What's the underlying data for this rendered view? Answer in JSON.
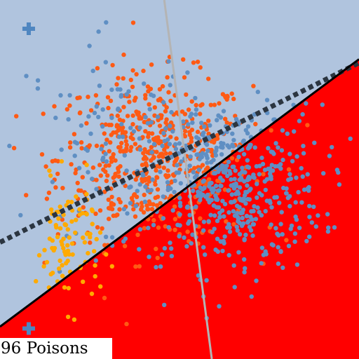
{
  "caption": "96 Poisons",
  "chart_data": {
    "type": "scatter",
    "title": "",
    "xlabel": "",
    "ylabel": "",
    "xlim": [
      -1,
      1
    ],
    "ylim": [
      -1,
      1
    ],
    "grid": false,
    "legend": "none",
    "regions": {
      "upper_color": "#b0c4de",
      "lower_color": "#ff0000",
      "boundary": {
        "color": "#000000",
        "x": [
          -1,
          1
        ],
        "y": [
          -0.82,
          0.67
        ]
      }
    },
    "lines": [
      {
        "name": "",
        "style": "dotted",
        "color": "#2b3540",
        "x": [
          -1,
          1
        ],
        "y": [
          -0.35,
          0.65
        ]
      },
      {
        "name": "",
        "style": "solid",
        "color": "#b4b4b4",
        "x": [
          -0.085,
          0.18
        ],
        "y": [
          1,
          -1
        ]
      }
    ],
    "centroids": [
      {
        "color": "#4f86c0",
        "marker": "plus",
        "x": -0.84,
        "y": 0.84
      },
      {
        "color": "#4f86c0",
        "marker": "plus",
        "x": -0.84,
        "y": -0.83
      }
    ],
    "series": [
      {
        "color": "#ff5a14",
        "center": [
          -0.14,
          0.12
        ],
        "spread": [
          0.27,
          0.23
        ],
        "count": 560
      },
      {
        "color": "#5f8fc3",
        "center": [
          0.27,
          -0.05
        ],
        "spread": [
          0.26,
          0.23
        ],
        "count": 520
      },
      {
        "color": "#5f8fc3",
        "center": [
          -0.35,
          0.25
        ],
        "spread": [
          0.25,
          0.26
        ],
        "count": 90
      },
      {
        "color": "#ffaa00",
        "center": [
          -0.62,
          -0.36
        ],
        "spread": [
          0.09,
          0.17
        ],
        "count": 96
      }
    ]
  }
}
